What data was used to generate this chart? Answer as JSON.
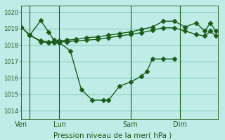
{
  "xlabel": "Pression niveau de la mer( hPa )",
  "background_color": "#c0ece8",
  "grid_color": "#5cbd9a",
  "line_color": "#1a5c1a",
  "ylim": [
    1013.5,
    1020.4
  ],
  "ytick_values": [
    1014,
    1015,
    1016,
    1017,
    1018,
    1019,
    1020
  ],
  "xtick_labels": [
    "Ven",
    "Lun",
    "Sam",
    "Dim"
  ],
  "xtick_positions": [
    0,
    3.5,
    10,
    14.5
  ],
  "vline_positions": [
    0.8,
    3.5,
    10,
    14.5
  ],
  "xlim": [
    0,
    18
  ],
  "line1": {
    "x": [
      0,
      0.8,
      1.8,
      2.5,
      3.0,
      3.5,
      4.2,
      5.0,
      6.0,
      7.0,
      8.0,
      9.0,
      10.0,
      11.0,
      12.0,
      13.0,
      14.0,
      15.0,
      16.0,
      16.8,
      17.3,
      17.8
    ],
    "y": [
      1019.1,
      1018.6,
      1019.5,
      1018.8,
      1018.3,
      1018.25,
      1018.3,
      1018.35,
      1018.45,
      1018.5,
      1018.6,
      1018.7,
      1018.8,
      1018.95,
      1019.1,
      1019.45,
      1019.45,
      1019.1,
      1019.35,
      1018.85,
      1019.35,
      1018.85
    ]
  },
  "line2": {
    "x": [
      0,
      0.8,
      1.8,
      2.5,
      3.0,
      3.5,
      4.2,
      5.0,
      6.0,
      7.0,
      8.0,
      9.0,
      10.0,
      11.0,
      12.0,
      13.0,
      14.0,
      15.0,
      16.0,
      16.8,
      17.3,
      17.8
    ],
    "y": [
      1019.1,
      1018.6,
      1018.25,
      1018.2,
      1018.2,
      1018.2,
      1018.2,
      1018.25,
      1018.3,
      1018.35,
      1018.45,
      1018.55,
      1018.65,
      1018.75,
      1018.9,
      1019.05,
      1019.05,
      1018.85,
      1018.65,
      1018.55,
      1018.85,
      1018.55
    ]
  },
  "line3": {
    "x": [
      0,
      0.8,
      1.8,
      2.5,
      3.0,
      3.5,
      4.5,
      5.5,
      6.5,
      7.5,
      8.0,
      9.0,
      10.0,
      11.0,
      11.5,
      12.0,
      13.0,
      14.0
    ],
    "y": [
      1019.1,
      1018.6,
      1018.2,
      1018.15,
      1018.15,
      1018.15,
      1017.65,
      1015.3,
      1014.65,
      1014.65,
      1014.65,
      1015.5,
      1015.75,
      1016.1,
      1016.4,
      1017.15,
      1017.15,
      1017.15
    ]
  }
}
